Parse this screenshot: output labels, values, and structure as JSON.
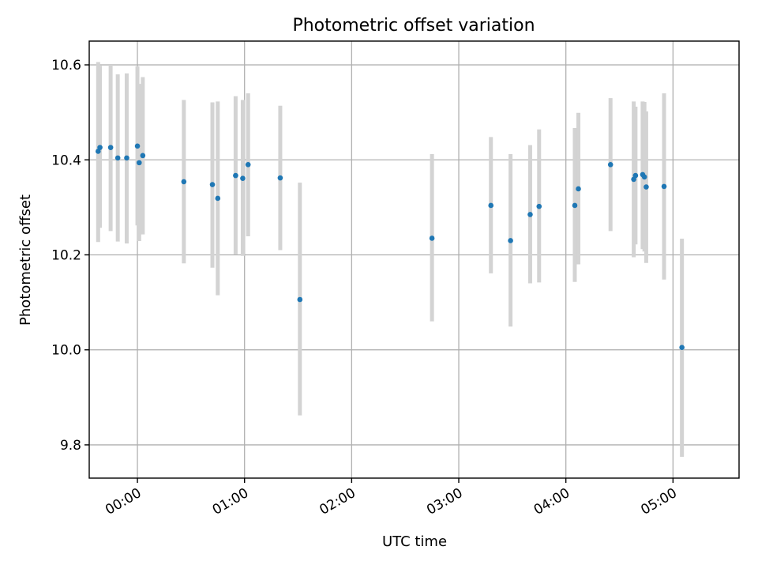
{
  "chart_data": {
    "type": "scatter",
    "title": "Photometric offset variation",
    "xlabel": "UTC time",
    "ylabel": "Photometric offset",
    "xlim": [
      "23:33",
      "05:37"
    ],
    "ylim": [
      9.73,
      10.65
    ],
    "xticks": [
      "00:00",
      "01:00",
      "02:00",
      "03:00",
      "04:00",
      "05:00"
    ],
    "yticks": [
      "9.8",
      "10.0",
      "10.2",
      "10.4",
      "10.6"
    ],
    "ytick_values": [
      9.8,
      10.0,
      10.2,
      10.4,
      10.6
    ],
    "grid": true,
    "series": [
      {
        "marker_color": "#1f77b4",
        "errorbar_color": "#d3d3d3",
        "points": [
          {
            "x": "23:38",
            "y": 10.418,
            "ylow": 10.227,
            "yhigh": 10.606
          },
          {
            "x": "23:39",
            "y": 10.426,
            "ylow": 10.257,
            "yhigh": 10.598
          },
          {
            "x": "23:45",
            "y": 10.426,
            "ylow": 10.25,
            "yhigh": 10.6
          },
          {
            "x": "23:49",
            "y": 10.404,
            "ylow": 10.228,
            "yhigh": 10.58
          },
          {
            "x": "23:54",
            "y": 10.404,
            "ylow": 10.224,
            "yhigh": 10.582
          },
          {
            "x": "00:00",
            "y": 10.429,
            "ylow": 10.262,
            "yhigh": 10.597
          },
          {
            "x": "00:01",
            "y": 10.394,
            "ylow": 10.229,
            "yhigh": 10.56
          },
          {
            "x": "00:03",
            "y": 10.409,
            "ylow": 10.243,
            "yhigh": 10.574
          },
          {
            "x": "00:26",
            "y": 10.354,
            "ylow": 10.182,
            "yhigh": 10.526
          },
          {
            "x": "00:42",
            "y": 10.348,
            "ylow": 10.173,
            "yhigh": 10.521
          },
          {
            "x": "00:45",
            "y": 10.319,
            "ylow": 10.115,
            "yhigh": 10.523
          },
          {
            "x": "00:55",
            "y": 10.367,
            "ylow": 10.201,
            "yhigh": 10.534
          },
          {
            "x": "00:59",
            "y": 10.361,
            "ylow": 10.198,
            "yhigh": 10.526
          },
          {
            "x": "01:02",
            "y": 10.39,
            "ylow": 10.239,
            "yhigh": 10.54
          },
          {
            "x": "01:20",
            "y": 10.362,
            "ylow": 10.21,
            "yhigh": 10.514
          },
          {
            "x": "01:31",
            "y": 10.106,
            "ylow": 9.862,
            "yhigh": 10.352
          },
          {
            "x": "02:45",
            "y": 10.235,
            "ylow": 10.06,
            "yhigh": 10.412
          },
          {
            "x": "03:18",
            "y": 10.304,
            "ylow": 10.161,
            "yhigh": 10.448
          },
          {
            "x": "03:29",
            "y": 10.23,
            "ylow": 10.049,
            "yhigh": 10.412
          },
          {
            "x": "03:40",
            "y": 10.285,
            "ylow": 10.14,
            "yhigh": 10.431
          },
          {
            "x": "03:45",
            "y": 10.302,
            "ylow": 10.142,
            "yhigh": 10.464
          },
          {
            "x": "04:05",
            "y": 10.304,
            "ylow": 10.143,
            "yhigh": 10.467
          },
          {
            "x": "04:07",
            "y": 10.339,
            "ylow": 10.18,
            "yhigh": 10.499
          },
          {
            "x": "04:25",
            "y": 10.39,
            "ylow": 10.25,
            "yhigh": 10.53
          },
          {
            "x": "04:38",
            "y": 10.359,
            "ylow": 10.195,
            "yhigh": 10.523
          },
          {
            "x": "04:39",
            "y": 10.367,
            "ylow": 10.222,
            "yhigh": 10.512
          },
          {
            "x": "04:43",
            "y": 10.369,
            "ylow": 10.212,
            "yhigh": 10.523
          },
          {
            "x": "04:44",
            "y": 10.364,
            "ylow": 10.207,
            "yhigh": 10.522
          },
          {
            "x": "04:45",
            "y": 10.343,
            "ylow": 10.183,
            "yhigh": 10.502
          },
          {
            "x": "04:55",
            "y": 10.344,
            "ylow": 10.148,
            "yhigh": 10.54
          },
          {
            "x": "05:05",
            "y": 10.005,
            "ylow": 9.775,
            "yhigh": 10.234
          }
        ]
      }
    ]
  }
}
